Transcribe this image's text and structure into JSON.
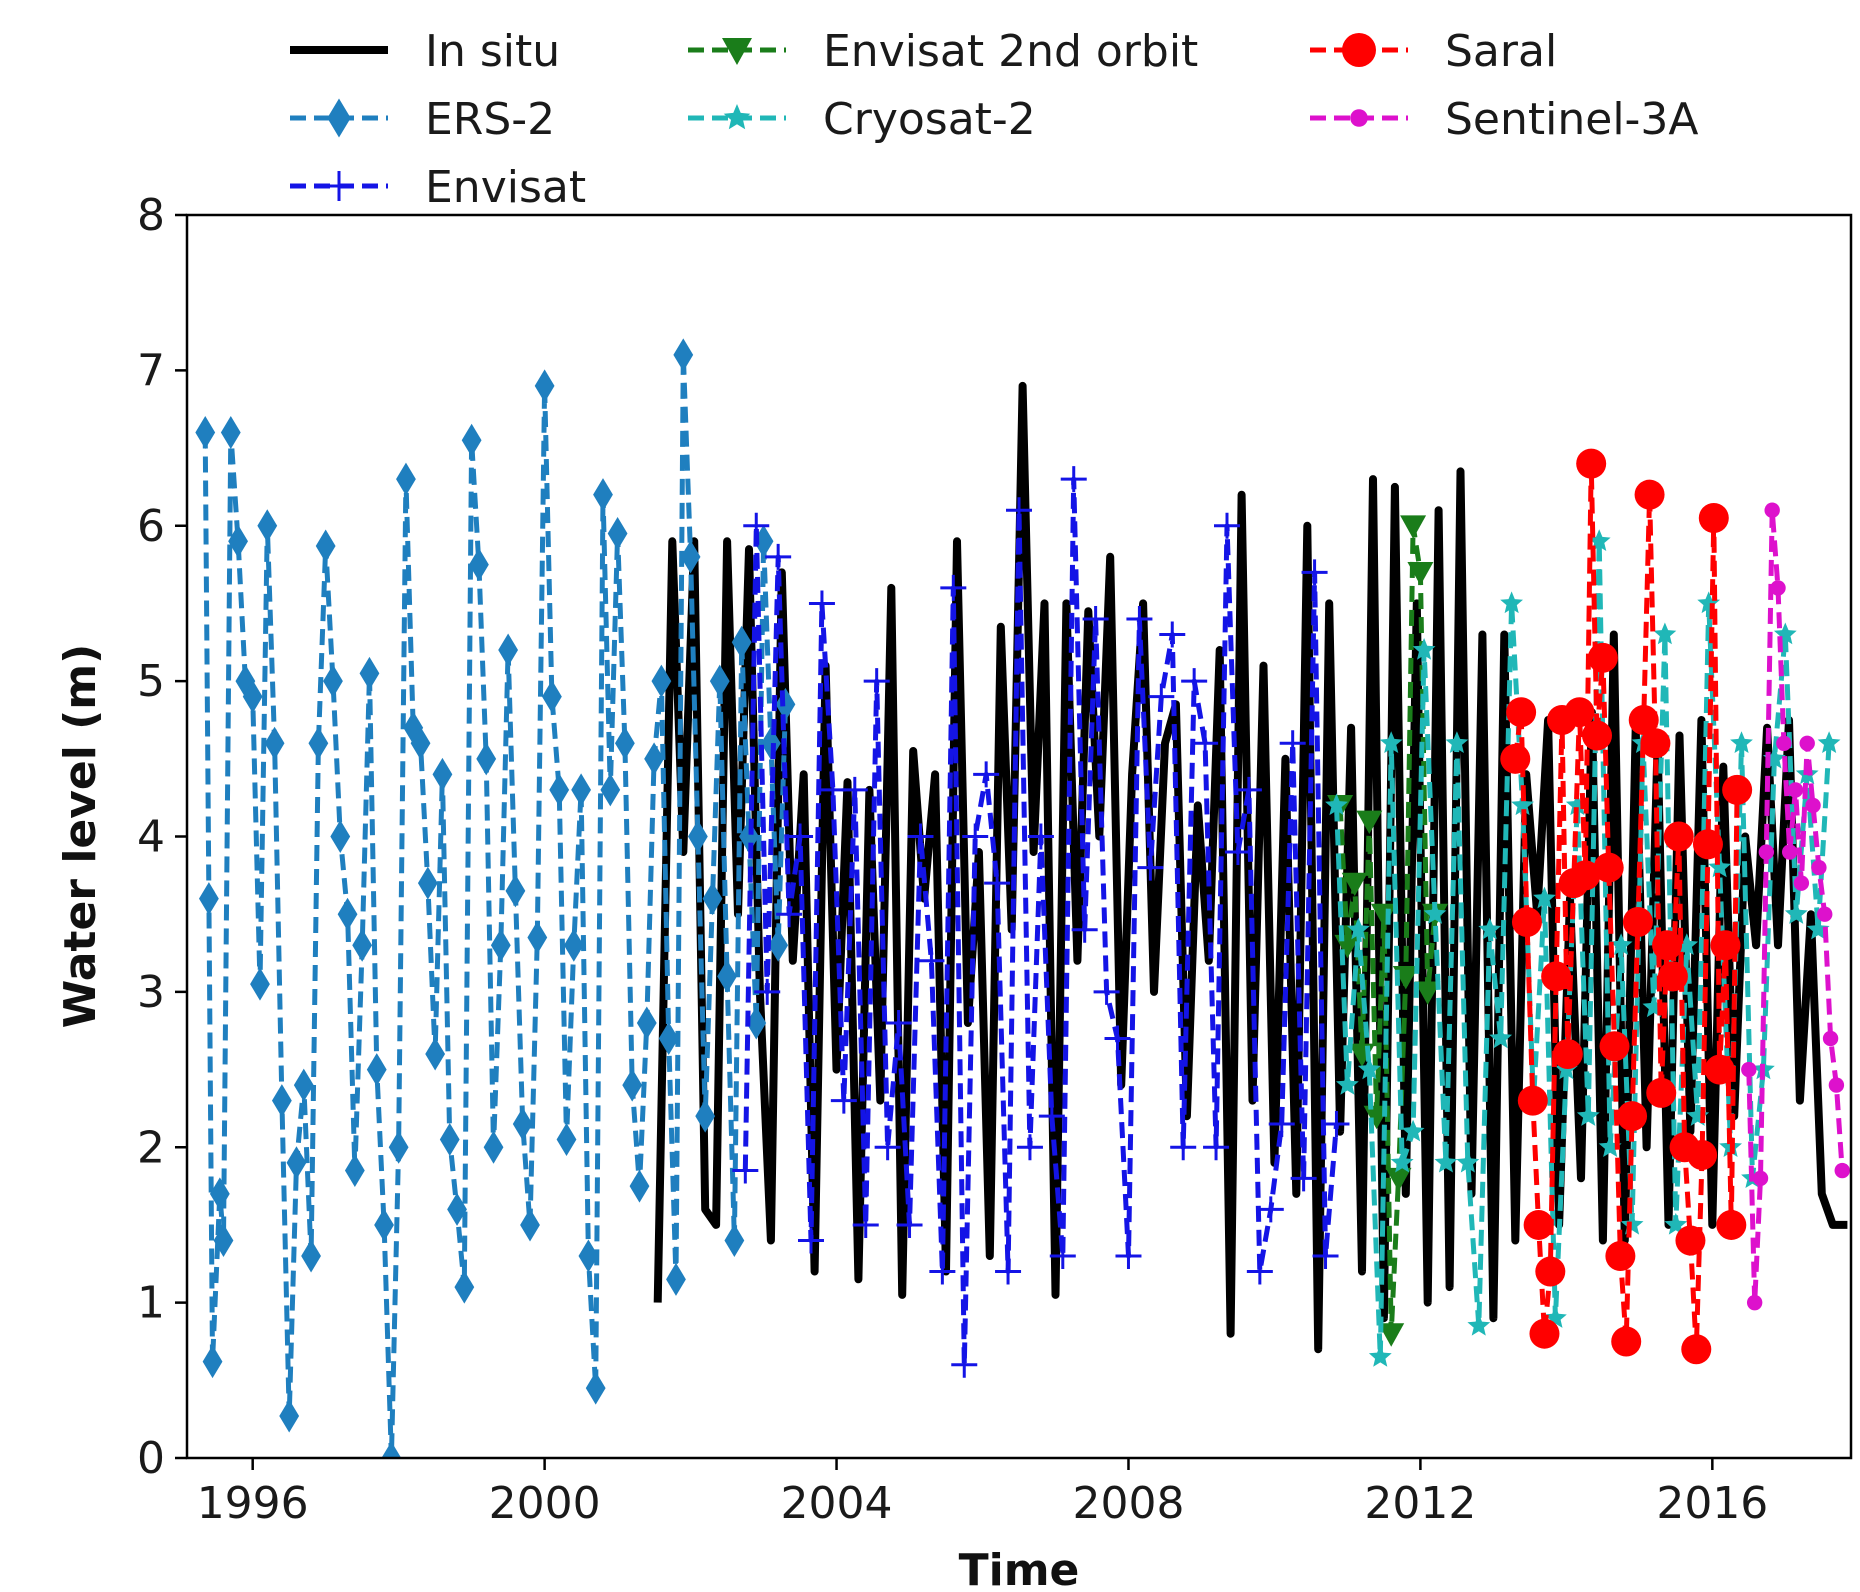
{
  "chart_data": {
    "type": "line",
    "xlabel": "Time",
    "ylabel": "Water level (m)",
    "xlim": [
      1995.1,
      2017.9
    ],
    "ylim": [
      0,
      8
    ],
    "x_ticks": [
      1996,
      2000,
      2004,
      2008,
      2012,
      2016
    ],
    "x_tick_labels": [
      "1996",
      "2000",
      "2004",
      "2008",
      "2012",
      "2016"
    ],
    "y_ticks": [
      0,
      1,
      2,
      3,
      4,
      5,
      6,
      7,
      8
    ],
    "y_tick_labels": [
      "0",
      "1",
      "2",
      "3",
      "4",
      "5",
      "6",
      "7",
      "8"
    ],
    "grid": false,
    "legend_placement": "top, above plot",
    "series": [
      {
        "name": "In situ",
        "color": "#000000",
        "style": "solid",
        "marker": "none",
        "x": [
          2001.55,
          2001.75,
          2001.9,
          2002.05,
          2002.2,
          2002.35,
          2002.5,
          2002.65,
          2002.8,
          2002.95,
          2003.1,
          2003.25,
          2003.4,
          2003.55,
          2003.7,
          2003.85,
          2004.0,
          2004.15,
          2004.3,
          2004.45,
          2004.6,
          2004.75,
          2004.9,
          2005.05,
          2005.2,
          2005.35,
          2005.5,
          2005.65,
          2005.8,
          2005.95,
          2006.1,
          2006.25,
          2006.4,
          2006.55,
          2006.7,
          2006.85,
          2007.0,
          2007.15,
          2007.3,
          2007.45,
          2007.6,
          2007.75,
          2007.9,
          2008.05,
          2008.2,
          2008.35,
          2008.5,
          2008.65,
          2008.8,
          2008.95,
          2009.1,
          2009.25,
          2009.4,
          2009.55,
          2009.7,
          2009.85,
          2010.0,
          2010.15,
          2010.3,
          2010.45,
          2010.6,
          2010.75,
          2010.9,
          2011.05,
          2011.2,
          2011.35,
          2011.5,
          2011.65,
          2011.8,
          2011.95,
          2012.1,
          2012.25,
          2012.4,
          2012.55,
          2012.7,
          2012.85,
          2013.0,
          2013.15,
          2013.3,
          2013.45,
          2013.6,
          2013.75,
          2013.9,
          2014.05,
          2014.2,
          2014.35,
          2014.5,
          2014.65,
          2014.8,
          2014.95,
          2015.1,
          2015.25,
          2015.4,
          2015.55,
          2015.7,
          2015.85,
          2016.0,
          2016.15,
          2016.3,
          2016.45,
          2016.6,
          2016.75,
          2016.9,
          2017.05,
          2017.2,
          2017.35,
          2017.5,
          2017.65,
          2017.85
        ],
        "y": [
          1.0,
          5.9,
          3.9,
          5.9,
          1.6,
          1.5,
          5.9,
          3.5,
          5.85,
          3.0,
          1.4,
          5.7,
          3.2,
          4.4,
          1.2,
          5.1,
          2.5,
          4.35,
          1.15,
          4.3,
          2.3,
          5.6,
          1.05,
          4.55,
          3.6,
          4.4,
          1.2,
          5.9,
          2.8,
          3.9,
          1.3,
          5.35,
          3.4,
          6.9,
          3.9,
          5.5,
          1.05,
          5.5,
          3.2,
          5.45,
          4.0,
          5.8,
          2.4,
          4.4,
          5.5,
          3.0,
          4.6,
          4.85,
          2.2,
          4.2,
          3.2,
          5.2,
          0.8,
          6.2,
          2.3,
          5.1,
          1.9,
          4.5,
          1.7,
          6.0,
          0.7,
          5.5,
          2.1,
          4.7,
          1.2,
          6.3,
          0.9,
          6.25,
          1.7,
          5.5,
          1.0,
          6.1,
          1.1,
          6.35,
          1.7,
          5.3,
          0.9,
          5.3,
          1.4,
          4.4,
          3.5,
          4.75,
          1.5,
          3.6,
          1.8,
          4.8,
          1.4,
          5.3,
          1.4,
          4.7,
          2.0,
          4.6,
          1.5,
          4.65,
          2.1,
          4.75,
          1.5,
          4.45,
          2.2,
          4.0,
          3.3,
          4.7,
          3.3,
          4.75,
          2.3,
          3.5,
          1.7,
          1.5,
          1.5
        ]
      },
      {
        "name": "ERS-2",
        "color": "#1f7fbf",
        "style": "dashed",
        "marker": "diamond",
        "x": [
          1995.35,
          1995.4,
          1995.45,
          1995.55,
          1995.6,
          1995.7,
          1995.8,
          1995.9,
          1996.0,
          1996.1,
          1996.2,
          1996.3,
          1996.4,
          1996.5,
          1996.6,
          1996.7,
          1996.8,
          1996.9,
          1997.0,
          1997.1,
          1997.2,
          1997.3,
          1997.4,
          1997.5,
          1997.6,
          1997.7,
          1997.8,
          1997.9,
          1998.0,
          1998.1,
          1998.2,
          1998.3,
          1998.4,
          1998.5,
          1998.6,
          1998.7,
          1998.8,
          1998.9,
          1999.0,
          1999.1,
          1999.2,
          1999.3,
          1999.4,
          1999.5,
          1999.6,
          1999.7,
          1999.8,
          1999.9,
          2000.0,
          2000.1,
          2000.2,
          2000.3,
          2000.4,
          2000.5,
          2000.6,
          2000.7,
          2000.8,
          2000.9,
          2001.0,
          2001.1,
          2001.2,
          2001.3,
          2001.4,
          2001.5,
          2001.6,
          2001.7,
          2001.8,
          2001.9,
          2002.0,
          2002.1,
          2002.2,
          2002.3,
          2002.4,
          2002.5,
          2002.6,
          2002.7,
          2002.8,
          2002.9,
          2003.0,
          2003.1,
          2003.2,
          2003.3
        ],
        "y": [
          6.6,
          3.6,
          0.62,
          1.7,
          1.4,
          6.6,
          5.9,
          5.0,
          4.9,
          3.05,
          6.0,
          4.6,
          2.3,
          0.27,
          1.9,
          2.4,
          1.3,
          4.6,
          5.87,
          5.0,
          4.0,
          3.5,
          1.85,
          3.3,
          5.05,
          2.5,
          1.5,
          0.0,
          2.0,
          6.3,
          4.7,
          4.6,
          3.7,
          2.6,
          4.4,
          2.05,
          1.6,
          1.1,
          6.55,
          5.75,
          4.5,
          2.0,
          3.3,
          5.2,
          3.65,
          2.15,
          1.5,
          3.35,
          6.9,
          4.9,
          4.3,
          2.05,
          3.3,
          4.3,
          1.3,
          0.45,
          6.2,
          4.3,
          5.95,
          4.6,
          2.4,
          1.75,
          2.8,
          4.5,
          5.0,
          2.7,
          1.15,
          7.1,
          5.8,
          4.0,
          2.2,
          3.6,
          5.0,
          3.1,
          1.4,
          5.25,
          4.0,
          2.8,
          5.9,
          4.6,
          3.3,
          4.85
        ]
      },
      {
        "name": "Envisat",
        "color": "#1414e6",
        "style": "dashed",
        "marker": "plus",
        "x": [
          2002.75,
          2002.9,
          2003.05,
          2003.2,
          2003.35,
          2003.5,
          2003.65,
          2003.8,
          2003.95,
          2004.1,
          2004.25,
          2004.4,
          2004.55,
          2004.7,
          2004.85,
          2005.0,
          2005.15,
          2005.3,
          2005.45,
          2005.6,
          2005.75,
          2005.9,
          2006.05,
          2006.2,
          2006.35,
          2006.5,
          2006.65,
          2006.8,
          2006.95,
          2007.1,
          2007.25,
          2007.4,
          2007.55,
          2007.7,
          2007.85,
          2008.0,
          2008.15,
          2008.3,
          2008.45,
          2008.6,
          2008.75,
          2008.9,
          2009.05,
          2009.2,
          2009.35,
          2009.5,
          2009.65,
          2009.8,
          2009.95,
          2010.1,
          2010.25,
          2010.4,
          2010.55,
          2010.7,
          2010.85
        ],
        "y": [
          1.85,
          6.0,
          3.0,
          5.8,
          3.5,
          4.0,
          1.4,
          5.5,
          4.3,
          2.3,
          4.3,
          1.5,
          5.0,
          2.0,
          2.8,
          1.5,
          4.0,
          3.2,
          1.2,
          5.6,
          0.6,
          4.0,
          4.4,
          3.7,
          1.2,
          6.1,
          2.0,
          4.0,
          2.2,
          1.3,
          6.3,
          3.4,
          5.4,
          3.0,
          2.7,
          1.3,
          5.4,
          3.8,
          4.9,
          5.3,
          2.0,
          5.0,
          4.6,
          2.0,
          6.0,
          3.9,
          4.3,
          1.2,
          1.6,
          2.15,
          4.6,
          1.8,
          5.7,
          1.3,
          2.15
        ]
      },
      {
        "name": "Envisat 2nd orbit",
        "color": "#1a7d1a",
        "style": "dashed",
        "marker": "triangle_down",
        "x": [
          2010.9,
          2011.0,
          2011.1,
          2011.2,
          2011.3,
          2011.4,
          2011.5,
          2011.6,
          2011.7,
          2011.8,
          2011.9,
          2012.0,
          2012.1,
          2012.2
        ],
        "y": [
          4.2,
          3.3,
          3.7,
          2.6,
          4.1,
          2.2,
          3.5,
          0.8,
          1.8,
          3.1,
          6.0,
          5.7,
          3.0,
          3.5
        ]
      },
      {
        "name": "Cryosat-2",
        "color": "#20b7b7",
        "style": "dashed",
        "marker": "star",
        "x": [
          2010.85,
          2011.0,
          2011.15,
          2011.3,
          2011.45,
          2011.6,
          2011.75,
          2011.9,
          2012.05,
          2012.2,
          2012.35,
          2012.5,
          2012.65,
          2012.8,
          2012.95,
          2013.1,
          2013.25,
          2013.4,
          2013.55,
          2013.7,
          2013.85,
          2014.0,
          2014.15,
          2014.3,
          2014.45,
          2014.6,
          2014.75,
          2014.9,
          2015.05,
          2015.2,
          2015.35,
          2015.5,
          2015.65,
          2015.8,
          2015.95,
          2016.1,
          2016.25,
          2016.4,
          2016.55,
          2016.7,
          2016.85,
          2017.0,
          2017.15,
          2017.3,
          2017.45,
          2017.6
        ],
        "y": [
          4.2,
          2.4,
          3.4,
          2.5,
          0.65,
          4.6,
          1.9,
          2.1,
          5.2,
          3.5,
          1.9,
          4.6,
          1.9,
          0.85,
          3.4,
          2.7,
          5.5,
          4.2,
          2.3,
          3.6,
          0.9,
          2.5,
          4.2,
          2.2,
          5.9,
          2.0,
          3.3,
          1.5,
          4.6,
          2.9,
          5.3,
          1.5,
          3.3,
          2.2,
          5.5,
          3.8,
          2.0,
          4.6,
          1.8,
          2.5,
          4.5,
          5.3,
          3.5,
          4.4,
          3.4,
          4.6
        ]
      },
      {
        "name": "Saral",
        "color": "#ff0000",
        "style": "dashed",
        "marker": "circle",
        "x": [
          2013.3,
          2013.38,
          2013.46,
          2013.54,
          2013.62,
          2013.7,
          2013.78,
          2013.86,
          2013.94,
          2014.02,
          2014.1,
          2014.18,
          2014.26,
          2014.34,
          2014.42,
          2014.5,
          2014.58,
          2014.66,
          2014.74,
          2014.82,
          2014.9,
          2014.98,
          2015.06,
          2015.14,
          2015.22,
          2015.3,
          2015.38,
          2015.46,
          2015.54,
          2015.62,
          2015.7,
          2015.78,
          2015.86,
          2015.94,
          2016.02,
          2016.1,
          2016.18,
          2016.26,
          2016.34
        ],
        "y": [
          4.5,
          4.8,
          3.45,
          2.3,
          1.5,
          0.8,
          1.2,
          3.1,
          4.75,
          2.6,
          3.7,
          4.8,
          3.75,
          6.4,
          4.65,
          5.15,
          3.8,
          2.65,
          1.3,
          0.75,
          2.2,
          3.45,
          4.75,
          6.2,
          4.6,
          2.35,
          3.3,
          3.1,
          4.0,
          2.0,
          1.4,
          0.7,
          1.95,
          3.95,
          6.05,
          2.5,
          3.3,
          1.5,
          4.3
        ]
      },
      {
        "name": "Sentinel-3A",
        "color": "#dd11cc",
        "style": "dashed",
        "marker": "small_circle",
        "x": [
          2016.5,
          2016.58,
          2016.66,
          2016.74,
          2016.82,
          2016.9,
          2016.98,
          2017.06,
          2017.14,
          2017.22,
          2017.3,
          2017.38,
          2017.46,
          2017.54,
          2017.62,
          2017.7,
          2017.78
        ],
        "y": [
          2.5,
          1.0,
          1.8,
          3.9,
          6.1,
          5.6,
          4.6,
          3.9,
          4.3,
          3.7,
          4.6,
          4.2,
          3.8,
          3.5,
          2.7,
          2.4,
          1.85
        ]
      }
    ]
  }
}
